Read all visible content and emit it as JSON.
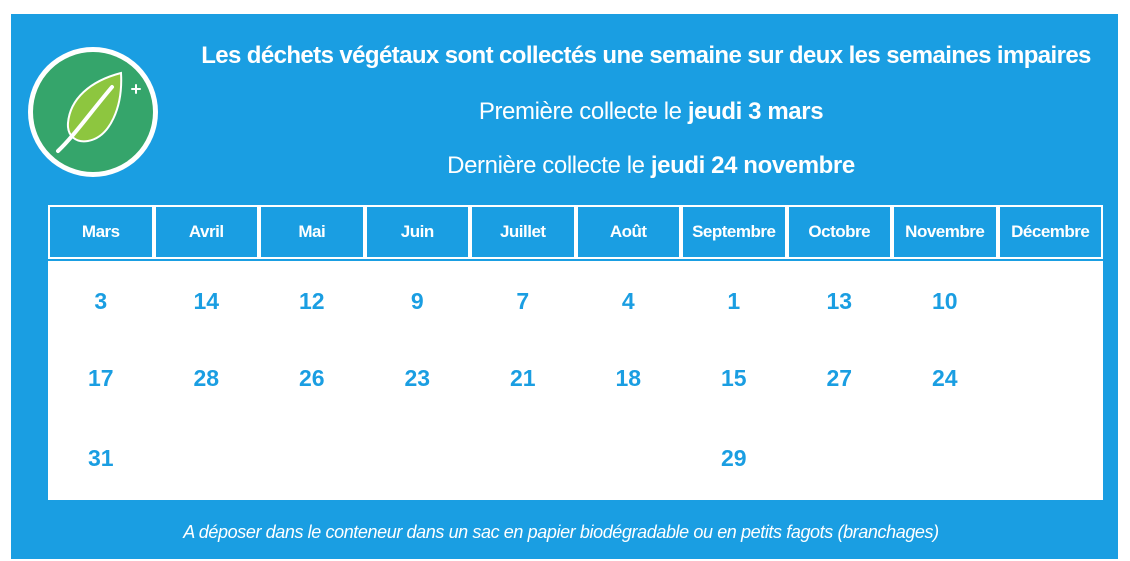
{
  "colors": {
    "panel": "#1a9ee2",
    "logo": "#35a56b",
    "text_on_panel": "#ffffff",
    "day_text": "#1a9ee2"
  },
  "logo": {
    "icon": "leaf-icon"
  },
  "headline": "Les déchets végétaux sont collectés une semaine sur deux les semaines impaires",
  "first_collection": {
    "prefix": "Première collecte le ",
    "date": "jeudi 3 mars"
  },
  "last_collection": {
    "prefix": "Dernière collecte le ",
    "date": "jeudi 24 novembre"
  },
  "months": [
    {
      "name": "Mars",
      "days": [
        "3",
        "17",
        "31"
      ]
    },
    {
      "name": "Avril",
      "days": [
        "14",
        "28",
        ""
      ]
    },
    {
      "name": "Mai",
      "days": [
        "12",
        "26",
        ""
      ]
    },
    {
      "name": "Juin",
      "days": [
        "9",
        "23",
        ""
      ]
    },
    {
      "name": "Juillet",
      "days": [
        "7",
        "21",
        ""
      ]
    },
    {
      "name": "Août",
      "days": [
        "4",
        "18",
        ""
      ]
    },
    {
      "name": "Septembre",
      "days": [
        "1",
        "15",
        "29"
      ]
    },
    {
      "name": "Octobre",
      "days": [
        "13",
        "27",
        ""
      ]
    },
    {
      "name": "Novembre",
      "days": [
        "10",
        "24",
        ""
      ]
    },
    {
      "name": "Décembre",
      "days": [
        "",
        "",
        ""
      ]
    }
  ],
  "footer": "A déposer dans le conteneur dans un sac en papier biodégradable ou en petits fagots (branchages)"
}
